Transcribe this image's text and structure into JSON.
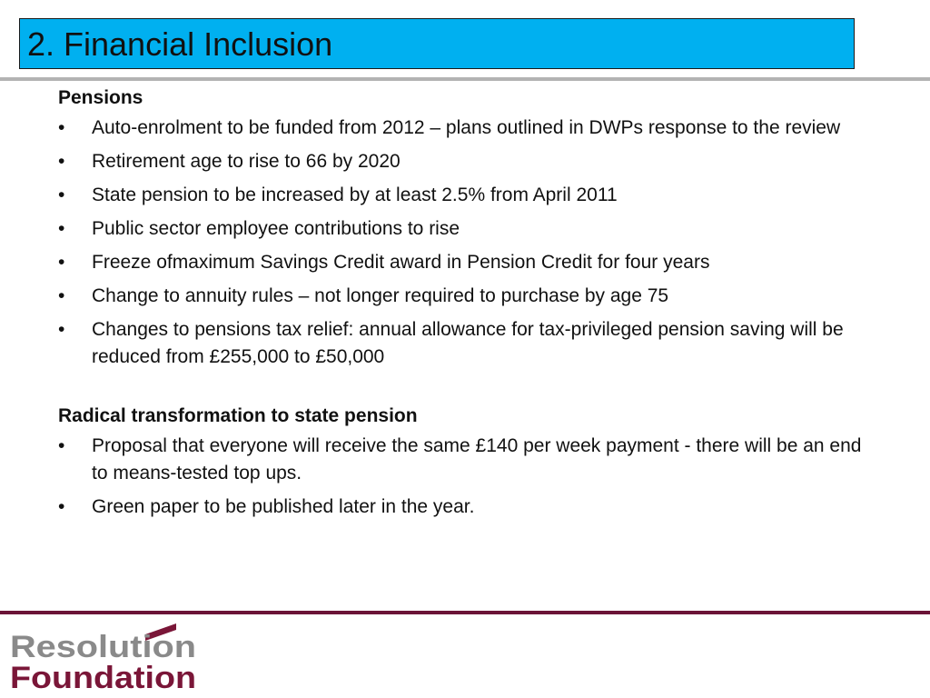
{
  "title": "2. Financial Inclusion",
  "sections": [
    {
      "heading": "Pensions",
      "bullets": [
        "Auto-enrolment to be funded from 2012 – plans outlined in DWPs response to the review",
        "Retirement age to rise to 66 by 2020",
        "State pension to be increased by at least 2.5% from April 2011",
        "Public sector employee contributions to rise",
        "Freeze ofmaximum Savings Credit award in Pension Credit for four years",
        "Change to annuity rules – not longer required to purchase by age 75",
        "Changes to pensions tax relief: annual allowance for tax-privileged pension saving will be reduced from £255,000 to £50,000"
      ]
    },
    {
      "heading": "Radical transformation to state pension",
      "bullets": [
        "Proposal that everyone will receive the same £140 per week payment  - there will be an end to means-tested top ups.",
        "Green paper to be published later in the year."
      ]
    }
  ],
  "bullet_symbol": "•",
  "logo": {
    "line1": "Resolution",
    "line2": "Foundation"
  },
  "colors": {
    "title_background": "#00b0f0",
    "top_rule": "#b3b3b3",
    "bottom_rule": "#6b1437",
    "logo_grey": "#8a8a8a",
    "logo_maroon": "#7a1638"
  }
}
